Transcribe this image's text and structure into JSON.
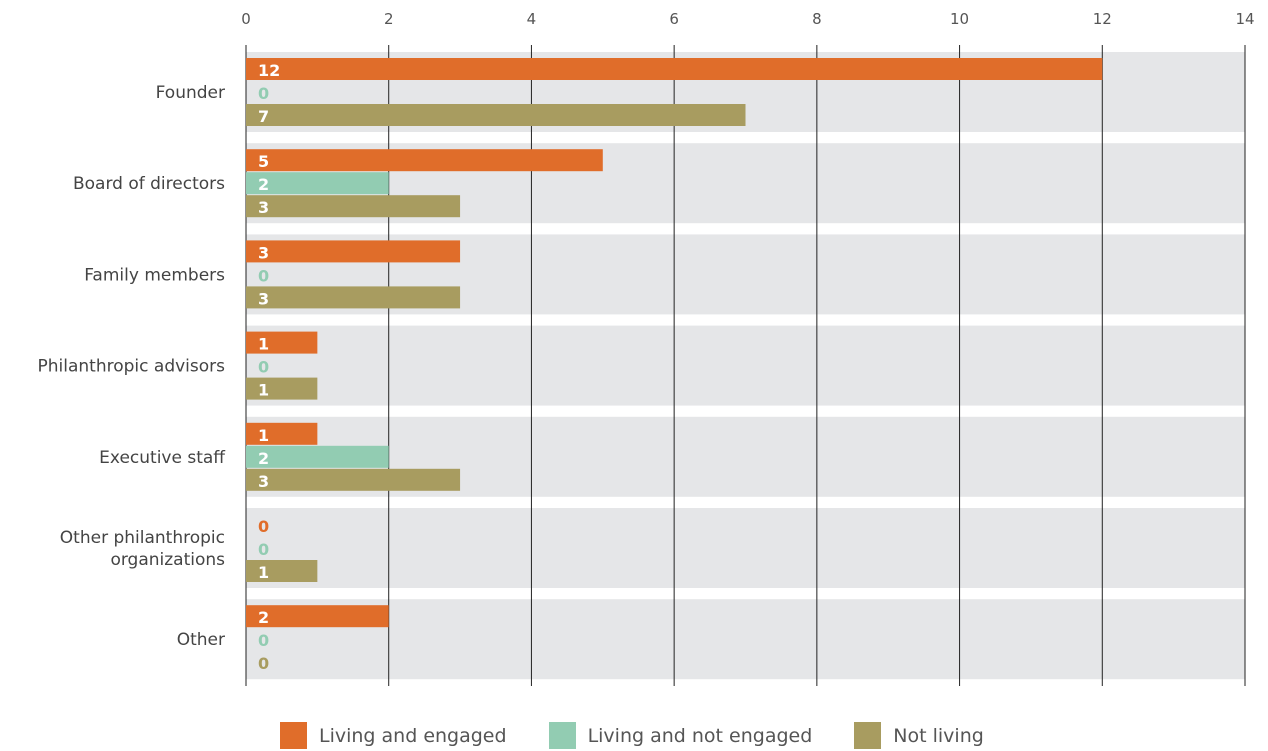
{
  "chart_data": {
    "type": "bar",
    "orientation": "horizontal",
    "categories": [
      "Founder",
      "Board of directors",
      "Family members",
      "Philanthropic advisors",
      "Executive staff",
      "Other philanthropic organizations",
      "Other"
    ],
    "category_lines": [
      [
        "Founder"
      ],
      [
        "Board of directors"
      ],
      [
        "Family members"
      ],
      [
        "Philanthropic advisors"
      ],
      [
        "Executive staff"
      ],
      [
        "Other philanthropic",
        "organizations"
      ],
      [
        "Other"
      ]
    ],
    "series": [
      {
        "name": "Living and engaged",
        "color": "#e06d2a",
        "values": [
          12,
          5,
          3,
          1,
          1,
          0,
          2
        ]
      },
      {
        "name": "Living and not engaged",
        "color": "#92ccb2",
        "values": [
          0,
          2,
          0,
          0,
          2,
          0,
          0
        ]
      },
      {
        "name": "Not living",
        "color": "#a89c60",
        "values": [
          7,
          3,
          3,
          1,
          3,
          1,
          0
        ]
      }
    ],
    "xlim": [
      0,
      14
    ],
    "xticks": [
      0,
      2,
      4,
      6,
      8,
      10,
      12,
      14
    ],
    "xtick_labels": [
      "0",
      "2",
      "4",
      "6",
      "8",
      "10",
      "12",
      "14"
    ],
    "x_axis_position": "top",
    "grid": true,
    "legend_position": "bottom",
    "band_color": "#e5e6e8",
    "title": "",
    "xlabel": "",
    "ylabel": ""
  }
}
